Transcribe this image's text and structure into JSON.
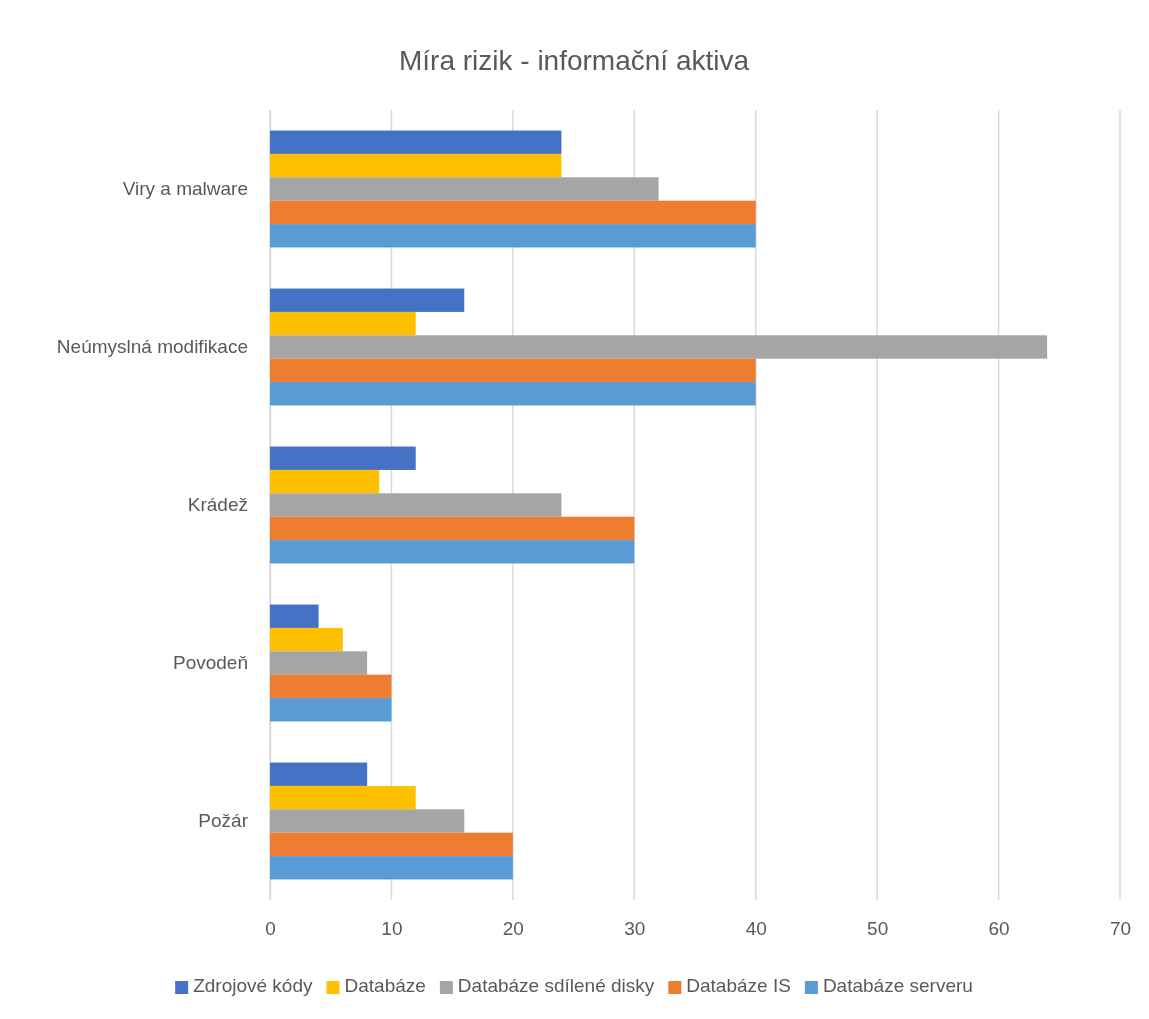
{
  "chart_data": {
    "type": "bar",
    "orientation": "horizontal",
    "title": "Míra rizik - informační aktiva",
    "categories": [
      "Viry a malware",
      "Neúmyslná modifikace",
      "Krádež",
      "Povodeň",
      "Požár"
    ],
    "series": [
      {
        "name": "Zdrojové kódy",
        "color": "#4472c4",
        "values": [
          24,
          16,
          12,
          4,
          8
        ]
      },
      {
        "name": "Databáze",
        "color": "#ffc000",
        "values": [
          24,
          12,
          9,
          6,
          12
        ]
      },
      {
        "name": "Databáze sdílené disky",
        "color": "#a5a5a5",
        "values": [
          32,
          64,
          24,
          8,
          16
        ]
      },
      {
        "name": "Databáze IS",
        "color": "#ed7d31",
        "values": [
          40,
          40,
          30,
          10,
          20
        ]
      },
      {
        "name": "Databáze serveru",
        "color": "#5b9bd5",
        "values": [
          40,
          40,
          30,
          10,
          20
        ]
      }
    ],
    "xlim": [
      0,
      70
    ],
    "xticks": [
      0,
      10,
      20,
      30,
      40,
      50,
      60,
      70
    ],
    "grid": "x",
    "legend": "bottom"
  }
}
